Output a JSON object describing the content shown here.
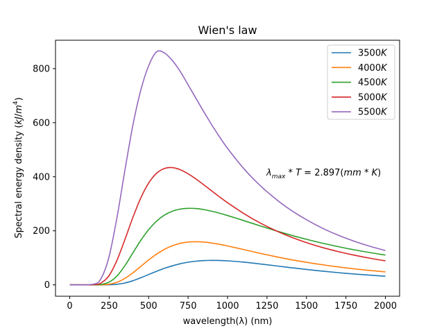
{
  "chart_data": {
    "type": "line",
    "title": "Wien's law",
    "xlabel": "wavelength(λ) (nm)",
    "ylabel": "Spectral energy density (kJ/m4)",
    "xlim": [
      -90,
      2090
    ],
    "ylim": [
      -42,
      905
    ],
    "xticks": [
      0,
      250,
      500,
      750,
      1000,
      1250,
      1500,
      1750,
      2000
    ],
    "yticks": [
      0,
      200,
      400,
      600,
      800
    ],
    "legend_position": "top-right",
    "grid": false,
    "annotation": "λmax * T = 2.897(mm * K)",
    "series": [
      {
        "name": "3500K",
        "color": "#1f77b4",
        "x": [
          0,
          150,
          200,
          250,
          300,
          350,
          400,
          450,
          500,
          550,
          600,
          650,
          700,
          750,
          800,
          850,
          900,
          950,
          1000,
          1100,
          1200,
          1300,
          1400,
          1500,
          1600,
          1700,
          1800,
          1900,
          2000
        ],
        "y": [
          0,
          0.0,
          0.0,
          0.4,
          2.2,
          7.0,
          15.3,
          26.2,
          38.2,
          50.2,
          61.1,
          70.5,
          78.1,
          83.8,
          87.6,
          89.8,
          90.6,
          90.3,
          89.0,
          84.3,
          77.9,
          70.9,
          63.8,
          57.1,
          50.9,
          45.3,
          40.3,
          35.9,
          32.0
        ]
      },
      {
        "name": "4000K",
        "color": "#ff7f0e",
        "x": [
          0,
          150,
          200,
          250,
          300,
          350,
          400,
          450,
          500,
          550,
          600,
          650,
          700,
          750,
          800,
          850,
          900,
          950,
          1000,
          1100,
          1200,
          1300,
          1400,
          1500,
          1600,
          1700,
          1800,
          1900,
          2000
        ],
        "y": [
          0,
          0.0,
          0.2,
          2.3,
          9.5,
          24.1,
          44.6,
          68.3,
          92.0,
          113.6,
          131.3,
          144.7,
          153.6,
          158.4,
          159.8,
          158.4,
          154.9,
          150.0,
          144.0,
          130.9,
          117.6,
          105.0,
          93.6,
          83.4,
          74.4,
          66.5,
          59.6,
          53.5,
          48.2
        ]
      },
      {
        "name": "4500K",
        "color": "#2ca02c",
        "x": [
          0,
          150,
          200,
          250,
          300,
          350,
          400,
          450,
          500,
          550,
          600,
          650,
          700,
          750,
          800,
          850,
          900,
          950,
          1000,
          1100,
          1200,
          1300,
          1400,
          1500,
          1600,
          1700,
          1800,
          1900,
          2000
        ],
        "y": [
          0,
          0.1,
          1.6,
          10.3,
          33.1,
          71.4,
          118.1,
          164.5,
          204.2,
          235.6,
          258.0,
          272.4,
          280.3,
          283.2,
          282.3,
          278.5,
          272.5,
          265.0,
          256.6,
          238.3,
          219.5,
          201.3,
          184.3,
          168.6,
          154.4,
          141.6,
          130.0,
          119.6,
          110.3
        ]
      },
      {
        "name": "5000K",
        "color": "#d62728",
        "x": [
          0,
          150,
          200,
          250,
          300,
          350,
          400,
          450,
          500,
          550,
          600,
          650,
          700,
          750,
          800,
          850,
          900,
          950,
          1000,
          1100,
          1200,
          1300,
          1400,
          1500,
          1600,
          1700,
          1800,
          1900,
          2000
        ],
        "y": [
          0,
          0.6,
          7.6,
          35.1,
          91.5,
          168.1,
          249.2,
          321.4,
          376.6,
          412.6,
          430.6,
          433.9,
          426.2,
          411.1,
          391.6,
          369.9,
          347.5,
          325.3,
          304.0,
          265.0,
          231.1,
          202.0,
          177.3,
          156.4,
          138.5,
          123.3,
          110.2,
          98.9,
          89.1
        ]
      },
      {
        "name": "5500K",
        "color": "#9467bd",
        "x": [
          0,
          150,
          200,
          250,
          300,
          350,
          400,
          450,
          500,
          550,
          600,
          650,
          700,
          750,
          800,
          850,
          900,
          950,
          1000,
          1100,
          1200,
          1300,
          1400,
          1500,
          1600,
          1700,
          1800,
          1900,
          2000
        ],
        "y": [
          0,
          2.5,
          25.4,
          106.0,
          250.0,
          425.0,
          590.0,
          720.0,
          810.0,
          862.0,
          858.0,
          830.0,
          790.0,
          740.0,
          690.0,
          640.0,
          592.0,
          547.0,
          505.0,
          432.0,
          371.0,
          320.0,
          277.0,
          241.0,
          210.0,
          184.0,
          162.0,
          143.0,
          127.0
        ]
      }
    ]
  }
}
